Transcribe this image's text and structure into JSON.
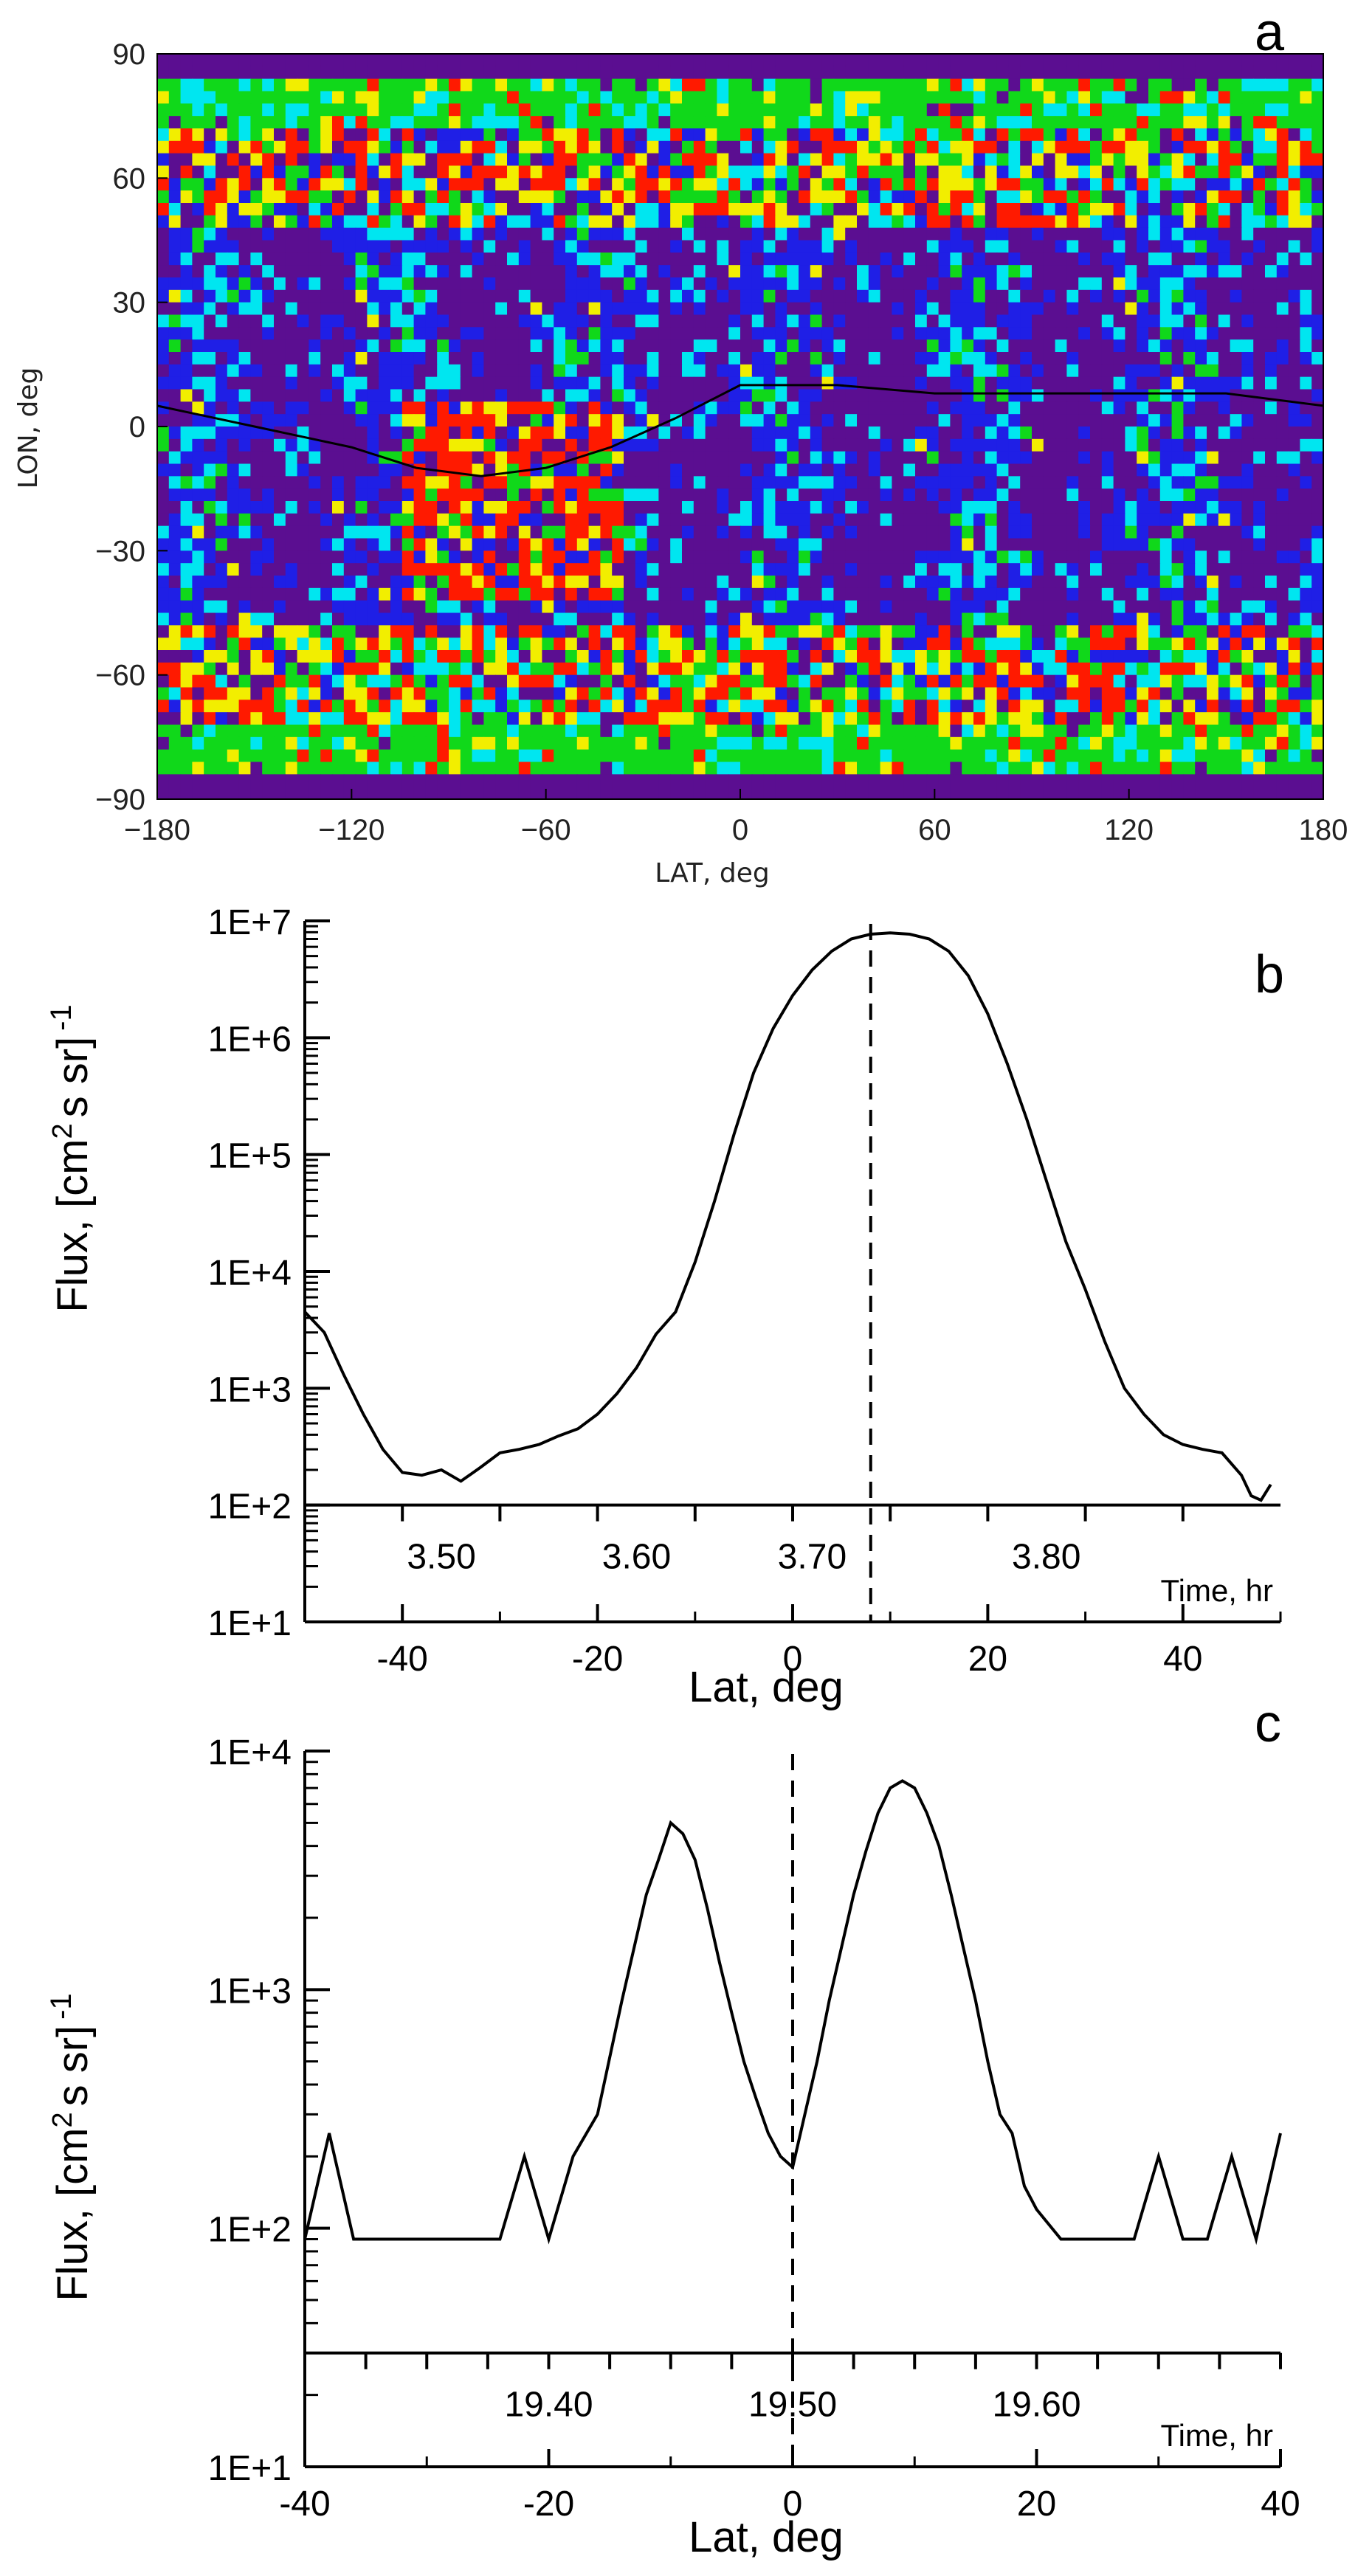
{
  "chart_data": [
    {
      "id": "a",
      "type": "heatmap",
      "panel_label": "a",
      "xlabel": "LAT, deg",
      "ylabel": "LON, deg",
      "xlim": [
        -180,
        180
      ],
      "ylim": [
        -90,
        90
      ],
      "xticks": [
        -180,
        -120,
        -60,
        0,
        60,
        120,
        180
      ],
      "yticks": [
        90,
        60,
        30,
        0,
        -30,
        -60,
        -90
      ],
      "x_tick_labels": [
        "−180",
        "−120",
        "−60",
        "0",
        "60",
        "120",
        "180"
      ],
      "y_tick_labels": [
        "90",
        "60",
        "30",
        "0",
        "−30",
        "−60",
        "−90"
      ],
      "colorscale": [
        "#5b0e91",
        "#1f1fe6",
        "#00e6f0",
        "#10d81a",
        "#f2ee00",
        "#ff1a00"
      ],
      "background_color": "#5b0e91",
      "trajectory": {
        "x": [
          -180,
          -150,
          -120,
          -100,
          -80,
          -60,
          -40,
          -20,
          0,
          30,
          60,
          90,
          120,
          150,
          180
        ],
        "y": [
          5,
          0,
          -5,
          -10,
          -12,
          -10,
          -5,
          2,
          10,
          10,
          8,
          8,
          8,
          8,
          5
        ]
      }
    },
    {
      "id": "b",
      "type": "line",
      "panel_label": "b",
      "xlabel": "Lat, deg",
      "ylabel": "Flux, [cm² s sr] -1",
      "ylabel_parts": [
        "Flux, [cm",
        "2",
        "s sr]",
        "-1"
      ],
      "yscale": "log",
      "xlim": [
        -50,
        50
      ],
      "ylim": [
        10,
        10000000
      ],
      "xticks": [
        -40,
        -20,
        0,
        20,
        40
      ],
      "x_tick_labels": [
        "-40",
        "-20",
        "0",
        "20",
        "40"
      ],
      "ytick_values": [
        10,
        100,
        1000,
        10000,
        100000,
        1000000,
        10000000
      ],
      "y_tick_labels": [
        "1E+1",
        "1E+2",
        "1E+3",
        "1E+4",
        "1E+5",
        "1E+6",
        "1E+7"
      ],
      "time_axis": {
        "label": "Time, hr",
        "axis_value": 100,
        "tick_positions": [
          -40,
          -30,
          -20,
          -10,
          0,
          10,
          20,
          30,
          40
        ],
        "labels": [
          {
            "text": "3.50",
            "x": -36
          },
          {
            "text": "3.60",
            "x": -16
          },
          {
            "text": "3.70",
            "x": 2
          },
          {
            "text": "3.80",
            "x": 26
          }
        ]
      },
      "vline_x": 8,
      "series": [
        {
          "name": "Flux",
          "x": [
            -50,
            -48,
            -46,
            -44,
            -42,
            -40,
            -38,
            -36,
            -34,
            -32,
            -30,
            -28,
            -26,
            -24,
            -22,
            -20,
            -18,
            -16,
            -14,
            -12,
            -10,
            -8,
            -6,
            -4,
            -2,
            0,
            2,
            4,
            6,
            8,
            10,
            12,
            14,
            16,
            18,
            20,
            22,
            24,
            26,
            28,
            30,
            32,
            34,
            36,
            38,
            40,
            42,
            44,
            46,
            47,
            48,
            49
          ],
          "values": [
            4500,
            3000,
            1300,
            600,
            300,
            190,
            180,
            200,
            160,
            210,
            280,
            300,
            330,
            390,
            450,
            600,
            900,
            1500,
            2900,
            4500,
            12000,
            40000,
            150000,
            500000,
            1200000,
            2300000,
            3800000,
            5500000,
            7000000,
            7700000,
            7900000,
            7700000,
            7000000,
            5500000,
            3400000,
            1600000,
            600000,
            200000,
            60000,
            18000,
            7000,
            2500,
            1000,
            600,
            400,
            330,
            300,
            280,
            180,
            120,
            110,
            150
          ]
        }
      ]
    },
    {
      "id": "c",
      "type": "line",
      "panel_label": "c",
      "xlabel": "Lat, deg",
      "ylabel": "Flux, [cm² s sr] -1",
      "ylabel_parts": [
        "Flux, [cm",
        "2",
        "s sr]",
        "-1"
      ],
      "yscale": "log",
      "xlim": [
        -40,
        40
      ],
      "ylim": [
        10,
        10000
      ],
      "xticks": [
        -40,
        -20,
        0,
        20,
        40
      ],
      "x_tick_labels": [
        "-40",
        "-20",
        "0",
        "20",
        "40"
      ],
      "ytick_values": [
        10,
        100,
        1000,
        10000
      ],
      "y_tick_labels": [
        "1E+1",
        "1E+2",
        "1E+3",
        "1E+4"
      ],
      "time_axis": {
        "label": "Time, hr",
        "axis_value": 30,
        "tick_positions": [
          -40,
          -35,
          -30,
          -25,
          -20,
          -15,
          -10,
          -5,
          0,
          5,
          10,
          15,
          20,
          25,
          30,
          35,
          40
        ],
        "labels": [
          {
            "text": "19.40",
            "x": -20
          },
          {
            "text": "19.50",
            "x": 0
          },
          {
            "text": "19.60",
            "x": 20
          }
        ]
      },
      "vline_x": 0,
      "series": [
        {
          "name": "Flux",
          "x": [
            -40,
            -38,
            -36,
            -34,
            -32,
            -30,
            -28,
            -26,
            -24,
            -22,
            -20,
            -18,
            -16,
            -14,
            -13,
            -12,
            -11,
            -10,
            -9,
            -8,
            -7,
            -6,
            -5,
            -4,
            -3,
            -2,
            -1,
            0,
            1,
            2,
            3,
            4,
            5,
            6,
            7,
            8,
            9,
            10,
            11,
            12,
            13,
            14,
            15,
            16,
            17,
            18,
            19,
            20,
            22,
            24,
            26,
            28,
            30,
            32,
            34,
            36,
            38,
            40
          ],
          "values": [
            90,
            250,
            90,
            90,
            90,
            90,
            90,
            90,
            90,
            200,
            90,
            200,
            300,
            900,
            1500,
            2500,
            3500,
            5000,
            4500,
            3500,
            2200,
            1300,
            800,
            500,
            350,
            250,
            200,
            180,
            300,
            500,
            900,
            1500,
            2500,
            3800,
            5500,
            7000,
            7500,
            7000,
            5500,
            4000,
            2500,
            1500,
            900,
            500,
            300,
            250,
            150,
            120,
            90,
            90,
            90,
            90,
            200,
            90,
            90,
            200,
            90,
            250
          ]
        }
      ]
    }
  ]
}
